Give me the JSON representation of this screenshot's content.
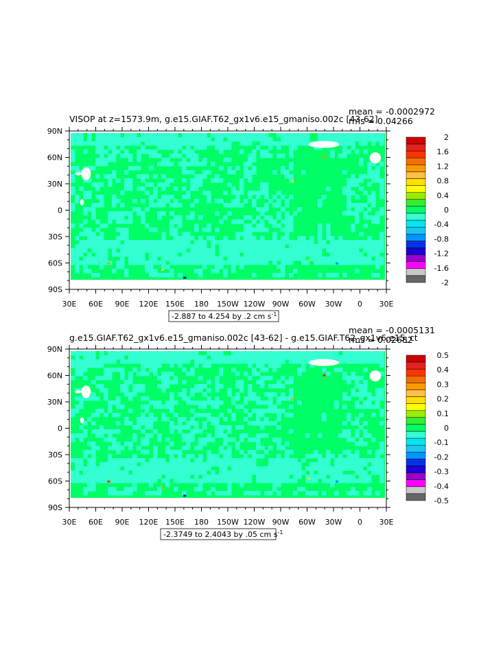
{
  "chart_data": [
    {
      "type": "heatmap",
      "title": "VISOP at z=1573.9m, g.e15.GIAF.T62_gx1v6.e15_gmaniso.002c [43-62]",
      "stats": {
        "mean": "mean = -0.0002972",
        "rms": "rms = 0.04266"
      },
      "range_label": "-2.887 to 4.254 by .2 cm s",
      "range_sup": "-1",
      "x_tick_labels": [
        "30E",
        "60E",
        "90E",
        "120E",
        "150E",
        "180",
        "150W",
        "120W",
        "90W",
        "60W",
        "30W",
        "0",
        "30E"
      ],
      "y_tick_labels": [
        "90N",
        "60N",
        "30N",
        "0",
        "30S",
        "60S",
        "90S"
      ],
      "colorbar": {
        "levels": [
          "2",
          "1.6",
          "1.2",
          "0.8",
          "0.4",
          "0",
          "-0.4",
          "-0.8",
          "-1.2",
          "-1.6",
          "-2"
        ],
        "colors": [
          "#cc0000",
          "#e52020",
          "#ff3300",
          "#f07000",
          "#ff9900",
          "#ffbf40",
          "#ffe000",
          "#ffff00",
          "#99ee00",
          "#33ee33",
          "#00ff66",
          "#33ffd2",
          "#00e6f0",
          "#19c8f0",
          "#0096ff",
          "#0033e6",
          "#1a00d6",
          "#9a00cc",
          "#ff00ff",
          "#c8c8c8",
          "#666666"
        ]
      },
      "mean_value": 0.0,
      "spot_values": [
        1.2,
        0.8,
        -1.2,
        0.4,
        -0.8
      ]
    },
    {
      "type": "heatmap",
      "title": "g.e15.GIAF.T62_gx1v6.e15_gmaniso.002c [43-62] - g.e15.GIAF.T62_gx1v6.e15_ct",
      "stats": {
        "mean": "mean = -0.0005131",
        "rms": "rms = 0.02682"
      },
      "range_label": "-2.3749 to 2.4043 by .05 cm s",
      "range_sup": "-1",
      "x_tick_labels": [
        "30E",
        "60E",
        "90E",
        "120E",
        "150E",
        "180",
        "150W",
        "120W",
        "90W",
        "60W",
        "30W",
        "0",
        "30E"
      ],
      "y_tick_labels": [
        "90N",
        "60N",
        "30N",
        "0",
        "30S",
        "60S",
        "90S"
      ],
      "colorbar": {
        "levels": [
          "0.5",
          "0.4",
          "0.3",
          "0.2",
          "0.1",
          "0",
          "-0.1",
          "-0.2",
          "-0.3",
          "-0.4",
          "-0.5"
        ],
        "colors": [
          "#cc0000",
          "#e52020",
          "#ff3300",
          "#f07000",
          "#ff9900",
          "#ffbf40",
          "#ffe000",
          "#ffff00",
          "#99ee00",
          "#33ee33",
          "#00ff66",
          "#33ffd2",
          "#00e6f0",
          "#19c8f0",
          "#0096ff",
          "#0033e6",
          "#1a00d6",
          "#9a00cc",
          "#ff00ff",
          "#c8c8c8",
          "#666666"
        ]
      },
      "mean_value": 0.0,
      "spot_values": [
        0.4,
        0.3,
        -0.3,
        0.2,
        -0.2
      ]
    }
  ]
}
